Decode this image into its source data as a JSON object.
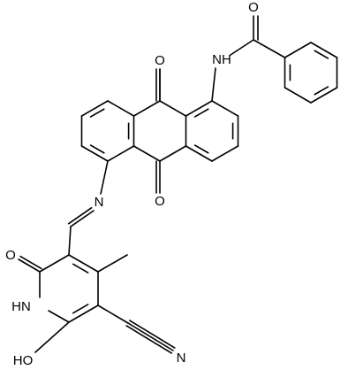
{
  "atoms": [
    {
      "label": "O"
    },
    {
      "label": "O"
    },
    {
      "label": "NH"
    },
    {
      "label": "O"
    },
    {
      "label": "N"
    },
    {
      "label": "O"
    },
    {
      "label": "HN"
    },
    {
      "label": "HO"
    },
    {
      "label": "N"
    }
  ]
}
